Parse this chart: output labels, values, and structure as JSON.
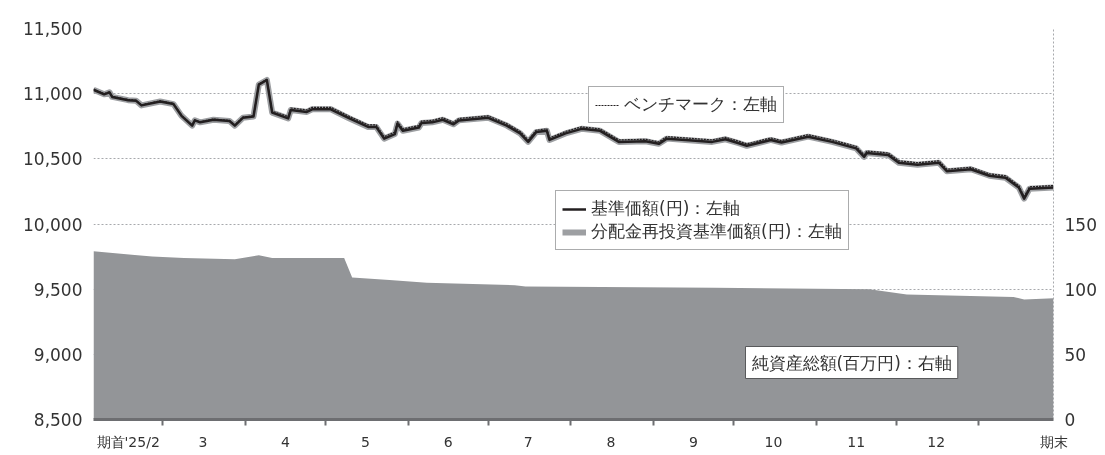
{
  "chart_data": {
    "type": "line",
    "xlim": [
      "2025-02-03",
      "2026-01-29"
    ],
    "ylim": [
      8500,
      11500
    ],
    "y2lim": [
      0,
      300
    ],
    "xticks": [
      {
        "value": "2025-02-16",
        "label": "期首'25/2"
      },
      {
        "value": "2025-03-16",
        "label": "3"
      },
      {
        "value": "2025-04-16",
        "label": "4"
      },
      {
        "value": "2025-05-16",
        "label": "5"
      },
      {
        "value": "2025-06-16",
        "label": "6"
      },
      {
        "value": "2025-07-16",
        "label": "7"
      },
      {
        "value": "2025-08-16",
        "label": "8"
      },
      {
        "value": "2025-09-16",
        "label": "9"
      },
      {
        "value": "2025-10-16",
        "label": "10"
      },
      {
        "value": "2025-11-16",
        "label": "11"
      },
      {
        "value": "2025-12-16",
        "label": "12"
      },
      {
        "value": "2026-01-29",
        "label": "期末"
      },
      {
        "value": "2025-03-01",
        "label": null
      },
      {
        "value": "2025-04-01",
        "label": null
      },
      {
        "value": "2025-05-01",
        "label": null
      },
      {
        "value": "2025-06-01",
        "label": null
      },
      {
        "value": "2025-07-01",
        "label": null
      },
      {
        "value": "2025-08-01",
        "label": null
      },
      {
        "value": "2025-09-01",
        "label": null
      },
      {
        "value": "2025-10-01",
        "label": null
      },
      {
        "value": "2025-11-01",
        "label": null
      },
      {
        "value": "2025-12-01",
        "label": null
      },
      {
        "value": "2026-01-01",
        "label": null
      }
    ],
    "yticks": [
      {
        "value": 8500,
        "label": "8,500"
      },
      {
        "value": 9000,
        "label": "9,000"
      },
      {
        "value": 9500,
        "label": "9,500"
      },
      {
        "value": 10000,
        "label": "10,000"
      },
      {
        "value": 10500,
        "label": "10,500"
      },
      {
        "value": 11000,
        "label": "11,000"
      },
      {
        "value": 11500,
        "label": "11,500"
      }
    ],
    "y2ticks": [
      0,
      50,
      100,
      150
    ],
    "grid": "y",
    "legend": "right",
    "marker": "none",
    "x": [
      "2025-02-03",
      "2025-02-07",
      "2025-02-09",
      "2025-02-10",
      "2025-02-16",
      "2025-02-19",
      "2025-02-21",
      "2025-02-28",
      "2025-03-05",
      "2025-03-08",
      "2025-03-12",
      "2025-03-13",
      "2025-03-15",
      "2025-03-20",
      "2025-03-26",
      "2025-03-28",
      "2025-03-31",
      "2025-04-04",
      "2025-04-06",
      "2025-04-09",
      "2025-04-11",
      "2025-04-17",
      "2025-04-18",
      "2025-04-24",
      "2025-04-26",
      "2025-05-03",
      "2025-05-10",
      "2025-05-17",
      "2025-05-20",
      "2025-05-23",
      "2025-05-27",
      "2025-05-28",
      "2025-05-30",
      "2025-06-05",
      "2025-06-06",
      "2025-06-10",
      "2025-06-14",
      "2025-06-18",
      "2025-06-20",
      "2025-07-01",
      "2025-07-08",
      "2025-07-13",
      "2025-07-16",
      "2025-07-19",
      "2025-07-23",
      "2025-07-24",
      "2025-07-30",
      "2025-08-05",
      "2025-08-12",
      "2025-08-19",
      "2025-08-29",
      "2025-09-03",
      "2025-09-06",
      "2025-09-13",
      "2025-09-23",
      "2025-09-28",
      "2025-10-03",
      "2025-10-06",
      "2025-10-15",
      "2025-10-19",
      "2025-10-29",
      "2025-11-07",
      "2025-11-16",
      "2025-11-19",
      "2025-11-20",
      "2025-11-28",
      "2025-12-02",
      "2025-12-09",
      "2025-12-17",
      "2025-12-20",
      "2025-12-29",
      "2026-01-05",
      "2026-01-11",
      "2026-01-16",
      "2026-01-18",
      "2026-01-20",
      "2026-01-29"
    ],
    "series": [
      {
        "name": "純資産総額(百万円)：右軸",
        "type": "area",
        "axis": "y2",
        "color": "#939598",
        "x": [
          "2025-02-03",
          "2025-02-25",
          "2025-03-09",
          "2025-03-28",
          "2025-04-06",
          "2025-04-11",
          "2025-05-08",
          "2025-05-11",
          "2025-05-25",
          "2025-06-08",
          "2025-07-11",
          "2025-07-15",
          "2025-09-24",
          "2025-11-21",
          "2025-12-05",
          "2026-01-14",
          "2026-01-18",
          "2026-01-29"
        ],
        "values": [
          129,
          125,
          124,
          123,
          126,
          124,
          124,
          109,
          107,
          105,
          103,
          102,
          101,
          100,
          96,
          94,
          92,
          93
        ]
      },
      {
        "name": "基準価額(円)：左軸",
        "color": "#231f20",
        "line_style": "solid",
        "values": [
          11030,
          10995,
          11010,
          10975,
          10950,
          10945,
          10910,
          10940,
          10920,
          10830,
          10755,
          10795,
          10780,
          10800,
          10790,
          10755,
          10815,
          10825,
          11070,
          11105,
          10855,
          10810,
          10875,
          10860,
          10880,
          10880,
          10810,
          10745,
          10745,
          10655,
          10690,
          10770,
          10715,
          10740,
          10775,
          10780,
          10800,
          10765,
          10795,
          10815,
          10755,
          10695,
          10630,
          10705,
          10715,
          10645,
          10695,
          10730,
          10715,
          10630,
          10635,
          10615,
          10655,
          10645,
          10630,
          10650,
          10620,
          10600,
          10645,
          10625,
          10670,
          10630,
          10580,
          10515,
          10545,
          10530,
          10470,
          10455,
          10470,
          10405,
          10420,
          10370,
          10355,
          10280,
          10195,
          10270,
          10280
        ]
      },
      {
        "name": "分配金再投資基準価額(円)：左軸",
        "color": "#9d9fa2",
        "line_style": "solid",
        "values": [
          11030,
          10995,
          11010,
          10975,
          10950,
          10945,
          10910,
          10940,
          10920,
          10830,
          10755,
          10795,
          10780,
          10800,
          10790,
          10755,
          10815,
          10825,
          11070,
          11105,
          10855,
          10810,
          10875,
          10860,
          10880,
          10880,
          10810,
          10745,
          10745,
          10655,
          10690,
          10770,
          10715,
          10740,
          10775,
          10780,
          10800,
          10765,
          10795,
          10815,
          10755,
          10695,
          10630,
          10705,
          10715,
          10645,
          10695,
          10730,
          10715,
          10630,
          10635,
          10615,
          10655,
          10645,
          10630,
          10650,
          10620,
          10600,
          10645,
          10625,
          10670,
          10630,
          10580,
          10515,
          10545,
          10530,
          10470,
          10455,
          10470,
          10405,
          10420,
          10370,
          10355,
          10280,
          10195,
          10270,
          10280
        ]
      },
      {
        "name": "ベンチマーク：左軸",
        "color": "#231f20",
        "line_style": "dotted",
        "values": [
          11035,
          11000,
          11015,
          10980,
          10955,
          10950,
          10915,
          10945,
          10925,
          10835,
          10760,
          10800,
          10785,
          10805,
          10795,
          10760,
          10820,
          10830,
          11075,
          11110,
          10865,
          10825,
          10890,
          10875,
          10895,
          10895,
          10825,
          10760,
          10760,
          10670,
          10705,
          10785,
          10730,
          10755,
          10790,
          10795,
          10815,
          10780,
          10810,
          10830,
          10770,
          10710,
          10645,
          10720,
          10730,
          10660,
          10710,
          10745,
          10730,
          10645,
          10650,
          10630,
          10670,
          10660,
          10645,
          10665,
          10635,
          10615,
          10660,
          10640,
          10685,
          10645,
          10595,
          10530,
          10560,
          10545,
          10485,
          10470,
          10485,
          10420,
          10435,
          10385,
          10370,
          10295,
          10210,
          10285,
          10295
        ]
      }
    ]
  }
}
